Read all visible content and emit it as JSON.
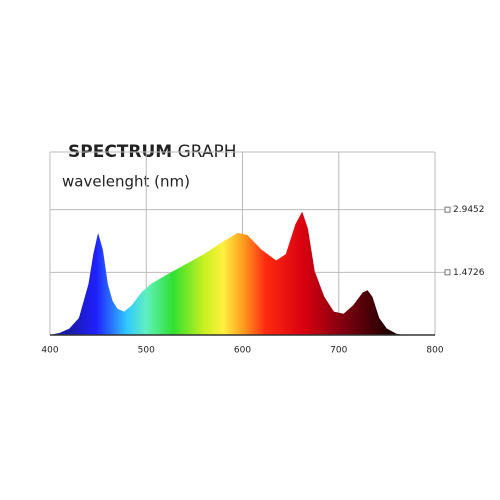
{
  "chart_data": {
    "type": "area",
    "title": [
      "SPECTRUM",
      "GRAPH"
    ],
    "xlabel": "wavelenght (nm)",
    "x": [
      400,
      410,
      420,
      430,
      440,
      445,
      450,
      455,
      460,
      465,
      470,
      477,
      485,
      495,
      505,
      520,
      540,
      560,
      580,
      595,
      605,
      620,
      635,
      645,
      655,
      662,
      668,
      675,
      685,
      695,
      705,
      715,
      725,
      730,
      735,
      742,
      750,
      760,
      768
    ],
    "values": [
      0,
      0.05,
      0.15,
      0.4,
      1.2,
      1.9,
      2.4,
      2.0,
      1.2,
      0.8,
      0.62,
      0.55,
      0.7,
      1.0,
      1.2,
      1.4,
      1.65,
      1.9,
      2.2,
      2.4,
      2.35,
      2.0,
      1.75,
      1.9,
      2.6,
      2.9,
      2.5,
      1.5,
      0.9,
      0.55,
      0.5,
      0.7,
      1.0,
      1.05,
      0.9,
      0.4,
      0.15,
      0.03,
      0
    ],
    "xlim": [
      400,
      800
    ],
    "xticks": [
      400,
      500,
      600,
      700,
      800
    ],
    "ylim": [
      0,
      4.3
    ],
    "yticks": [
      1.4726,
      2.9452
    ],
    "grid": true
  }
}
